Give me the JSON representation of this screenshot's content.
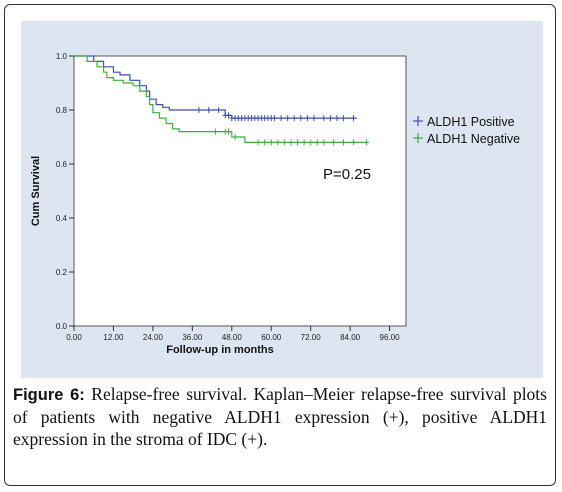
{
  "chart_data": {
    "type": "line",
    "title": "",
    "xlabel": "Follow-up in months",
    "ylabel": "Cum Survival",
    "xlim": [
      0,
      96
    ],
    "ylim": [
      0,
      1
    ],
    "x_ticks": [
      0,
      12,
      24,
      36,
      48,
      60,
      72,
      84,
      96
    ],
    "x_tick_labels": [
      "0.00",
      "12.00",
      "24.00",
      "36.00",
      "48.00",
      "60.00",
      "72.00",
      "84.00",
      "96.00"
    ],
    "y_ticks": [
      0,
      0.2,
      0.4,
      0.6,
      0.8,
      1.0
    ],
    "y_tick_labels": [
      "0.0",
      "0.2",
      "0.4",
      "0.6",
      "0.8",
      "1.0"
    ],
    "grid": false,
    "legend_position": "right",
    "annotation": "P=0.25",
    "series": [
      {
        "name": "ALDH1",
        "legend_suffix": "Positive",
        "color": "#3a4fb0",
        "steps": [
          [
            0,
            1.0
          ],
          [
            6,
            0.98
          ],
          [
            9,
            0.96
          ],
          [
            12,
            0.94
          ],
          [
            14,
            0.93
          ],
          [
            17,
            0.91
          ],
          [
            20,
            0.89
          ],
          [
            22,
            0.87
          ],
          [
            23,
            0.84
          ],
          [
            25,
            0.82
          ],
          [
            27,
            0.81
          ],
          [
            29,
            0.8
          ],
          [
            46,
            0.78
          ],
          [
            48,
            0.77
          ],
          [
            86,
            0.77
          ]
        ],
        "censored": [
          38,
          41,
          44,
          46,
          47,
          48,
          49,
          50,
          51,
          52,
          53,
          54,
          55,
          56,
          57,
          58,
          59,
          60,
          61,
          63,
          65,
          67,
          69,
          71,
          73,
          76,
          78,
          80,
          82,
          85
        ]
      },
      {
        "name": "ALDH1",
        "legend_suffix": "Negative",
        "color": "#3cae3c",
        "steps": [
          [
            0,
            1.0
          ],
          [
            4,
            0.98
          ],
          [
            7,
            0.96
          ],
          [
            9,
            0.94
          ],
          [
            10,
            0.92
          ],
          [
            12,
            0.91
          ],
          [
            15,
            0.9
          ],
          [
            18,
            0.89
          ],
          [
            20,
            0.87
          ],
          [
            22,
            0.85
          ],
          [
            23,
            0.82
          ],
          [
            24,
            0.79
          ],
          [
            26,
            0.77
          ],
          [
            28,
            0.75
          ],
          [
            30,
            0.73
          ],
          [
            32,
            0.72
          ],
          [
            48,
            0.7
          ],
          [
            52,
            0.68
          ],
          [
            89,
            0.68
          ]
        ],
        "censored": [
          43,
          46,
          47,
          49,
          56,
          58,
          60,
          62,
          64,
          66,
          68,
          70,
          72,
          74,
          76,
          79,
          82,
          85,
          89
        ]
      }
    ]
  },
  "caption": {
    "label": "Figure 6:",
    "text": " Relapse-free survival. Kaplan–Meier relapse-free survival plots of patients with negative ALDH1 expression (+), positive ALDH1 expression in the stroma of IDC (+)."
  }
}
